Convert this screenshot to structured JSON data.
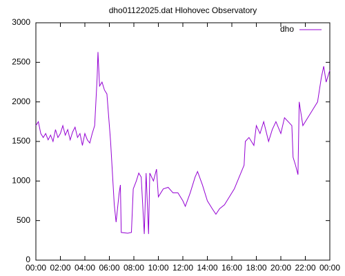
{
  "chart_data": {
    "type": "line",
    "title": "dho01122025.dat Hlohovec Observatory",
    "x": [
      0,
      0.2,
      0.4,
      0.6,
      0.8,
      1.0,
      1.2,
      1.4,
      1.6,
      1.8,
      2.0,
      2.2,
      2.4,
      2.6,
      2.8,
      3.0,
      3.2,
      3.4,
      3.6,
      3.8,
      4.0,
      4.2,
      4.4,
      4.6,
      4.8,
      5.0,
      5.07,
      5.2,
      5.4,
      5.6,
      5.8,
      6.1,
      6.4,
      6.55,
      6.8,
      6.9,
      6.97,
      7.5,
      7.8,
      7.95,
      8.2,
      8.4,
      8.6,
      8.85,
      9.0,
      9.2,
      9.3,
      9.6,
      9.85,
      10.0,
      10.4,
      10.8,
      11.2,
      11.6,
      12.0,
      12.2,
      12.6,
      13.0,
      13.2,
      13.6,
      14.0,
      14.4,
      14.7,
      15.0,
      15.4,
      15.8,
      16.2,
      16.6,
      17.0,
      17.1,
      17.4,
      17.8,
      18.0,
      18.3,
      18.6,
      19.0,
      19.3,
      19.6,
      20.0,
      20.3,
      20.6,
      20.9,
      21.0,
      21.2,
      21.4,
      21.5,
      21.8,
      22.2,
      22.6,
      23.0,
      23.3,
      23.5,
      23.7,
      24.0
    ],
    "series": [
      {
        "name": "dho",
        "color": "#9400d3",
        "values": [
          1700,
          1750,
          1600,
          1550,
          1600,
          1520,
          1580,
          1500,
          1650,
          1550,
          1600,
          1700,
          1580,
          1650,
          1520,
          1620,
          1680,
          1550,
          1600,
          1450,
          1600,
          1520,
          1480,
          1600,
          1700,
          2300,
          2630,
          2200,
          2250,
          2150,
          2100,
          1500,
          700,
          480,
          850,
          950,
          350,
          340,
          350,
          900,
          1000,
          1100,
          1050,
          330,
          1100,
          330,
          1100,
          1000,
          1150,
          800,
          900,
          920,
          850,
          850,
          750,
          680,
          850,
          1050,
          1120,
          950,
          750,
          650,
          580,
          650,
          700,
          800,
          900,
          1050,
          1200,
          1500,
          1550,
          1450,
          1700,
          1600,
          1750,
          1500,
          1650,
          1750,
          1600,
          1800,
          1750,
          1700,
          1300,
          1200,
          1080,
          2000,
          1700,
          1800,
          1900,
          2000,
          2300,
          2450,
          2250,
          2400
        ]
      }
    ],
    "xlim": [
      0,
      24
    ],
    "xticks": [
      {
        "value": 0,
        "label": "00:00"
      },
      {
        "value": 2,
        "label": "02:00"
      },
      {
        "value": 4,
        "label": "04:00"
      },
      {
        "value": 6,
        "label": "06:00"
      },
      {
        "value": 8,
        "label": "08:00"
      },
      {
        "value": 10,
        "label": "10:00"
      },
      {
        "value": 12,
        "label": "12:00"
      },
      {
        "value": 14,
        "label": "14:00"
      },
      {
        "value": 16,
        "label": "16:00"
      },
      {
        "value": 18,
        "label": "18:00"
      },
      {
        "value": 20,
        "label": "20:00"
      },
      {
        "value": 22,
        "label": "22:00"
      },
      {
        "value": 24,
        "label": "00:00"
      }
    ],
    "ylim": [
      0,
      3000
    ],
    "yticks": [
      0,
      500,
      1000,
      1500,
      2000,
      2500,
      3000
    ],
    "legend": "top-right"
  }
}
